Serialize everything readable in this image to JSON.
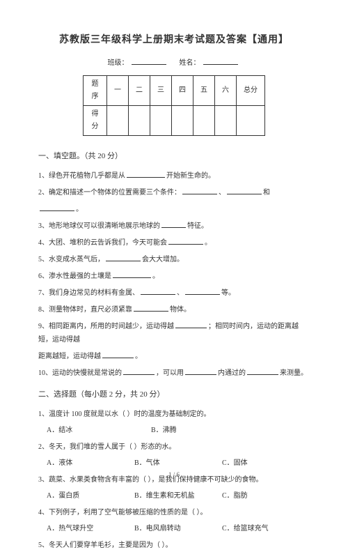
{
  "title": "苏教版三年级科学上册期末考试题及答案【通用】",
  "header": {
    "class_label": "班级：",
    "name_label": "姓名："
  },
  "score_table": {
    "row1": [
      "题序",
      "一",
      "二",
      "三",
      "四",
      "五",
      "六",
      "总分"
    ],
    "row2_label": "得分"
  },
  "section1": {
    "header": "一、填空题。（共  20 分）",
    "q1": {
      "pre": "1、绿色开花植物几乎都是从",
      "post": "开始新生命的。"
    },
    "q2": {
      "pre": "2、确定和描述一个物体的位置需要三个条件：",
      "mid1": "、",
      "mid2": "和",
      "post": "。"
    },
    "q3": {
      "pre": "3、地形地球仪可以很清晰地展示地球的",
      "post": "特征。"
    },
    "q4": {
      "pre": "4、大团、堆积的云告诉我们，今天可能会",
      "post": "。"
    },
    "q5": {
      "pre": "5、水变成水蒸气后，",
      "post": "会大大增加。"
    },
    "q6": {
      "pre": "6、渗水性最强的土壤是",
      "post": "。"
    },
    "q7": {
      "pre": "7、我们身边常见的材料有金属、",
      "mid": "、",
      "post": "等。"
    },
    "q8": {
      "pre": "8、测量物体时，直尺必须紧靠",
      "post": "物体。"
    },
    "q9": {
      "pre": "9、相同距离内，所用的时间越少，运动得越",
      "mid": "；相同时间内，运动的距离越短，运动得越",
      "post": "。"
    },
    "q10": {
      "pre": "10、运动的快慢就是常说的",
      "mid1": "，可以用",
      "mid2": "内通过的",
      "post": "来测量。"
    }
  },
  "section2": {
    "header": "二、选择题（每小题  2 分，共 20 分）",
    "q1": {
      "stem": "1、温度计 100 度就是以水（        ）时的温度为基础制定的。",
      "opts": {
        "a": "A．结冰",
        "b": "B．沸腾"
      }
    },
    "q2": {
      "stem": "2、冬天，我们堆的雪人属于（         ）形态的水。",
      "opts": {
        "a": "A．液体",
        "b": "B．气体",
        "c": "C．固体"
      }
    },
    "q3": {
      "stem": "3、蔬菜、水果类食物含有丰富的（       ），是我们保持健康不可缺少的食物。",
      "opts": {
        "a": "A．蛋白质",
        "b": "B．维生素和无机盐",
        "c": "C．脂肪"
      }
    },
    "q4": {
      "stem": "4、下列例子，利用了空气能够被压缩的性质的是（       ）。",
      "opts": {
        "a": "A．热气球升空",
        "b": "B．电风扇转动",
        "c": "C．给篮球充气"
      }
    },
    "q5": {
      "stem": "5、冬天人们要穿羊毛衫，主要是因为（      ）。"
    }
  },
  "pager": "1 / 6"
}
